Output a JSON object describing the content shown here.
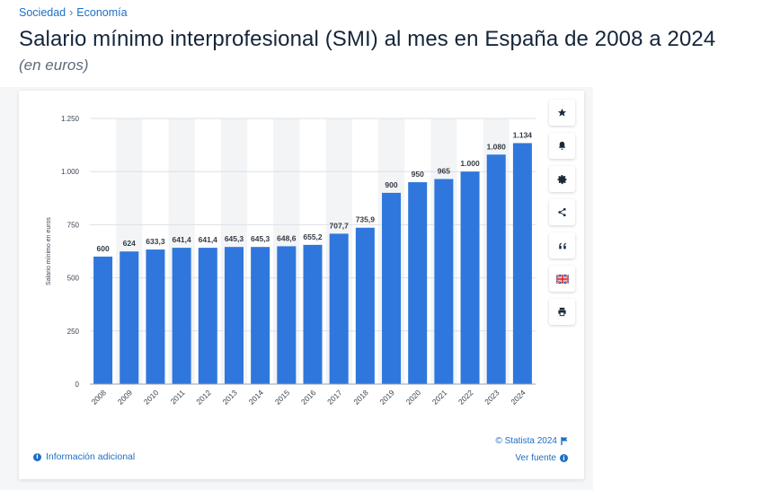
{
  "breadcrumb": {
    "items": [
      "Sociedad",
      "Economía"
    ],
    "separator": "›"
  },
  "page_title": "Salario mínimo interprofesional (SMI) al mes en España de 2008 a 2024",
  "page_subtitle": "(en euros)",
  "chart_data": {
    "type": "bar",
    "title": "Salario mínimo interprofesional (SMI) al mes en España de 2008 a 2024",
    "subtitle": "(en euros)",
    "categories": [
      "2008",
      "2009",
      "2010",
      "2011",
      "2012",
      "2013",
      "2014",
      "2015",
      "2016",
      "2017",
      "2018",
      "2019",
      "2020",
      "2021",
      "2022",
      "2023",
      "2024"
    ],
    "values": [
      600,
      624,
      633.3,
      641.4,
      641.4,
      645.3,
      645.3,
      648.6,
      655.2,
      707.7,
      735.9,
      900,
      950,
      965,
      1000,
      1080,
      1134
    ],
    "value_labels": [
      "600",
      "624",
      "633,3",
      "641,4",
      "641,4",
      "645,3",
      "645,3",
      "648,6",
      "655,2",
      "707,7",
      "735,9",
      "900",
      "950",
      "965",
      "1.000",
      "1.080",
      "1.134"
    ],
    "ylabel": "Salario mínimo en euros",
    "xlabel": "",
    "ylim": [
      0,
      1250
    ],
    "yticks": [
      0,
      250,
      500,
      750,
      1000,
      1250
    ],
    "ytick_labels": [
      "0",
      "250",
      "500",
      "750",
      "1.000",
      "1.250"
    ],
    "grid": true,
    "bar_color": "#2f77dc"
  },
  "toolbar": {
    "icons": [
      "star-icon",
      "bell-icon",
      "gear-icon",
      "share-icon",
      "quote-icon",
      "flag-icon",
      "print-icon"
    ]
  },
  "footer": {
    "info_label": "Información adicional",
    "copyright": "© Statista 2024",
    "source_label": "Ver fuente"
  },
  "colors": {
    "accent": "#1c6fc4",
    "bar": "#2f77dc",
    "band": "#f3f4f6"
  }
}
